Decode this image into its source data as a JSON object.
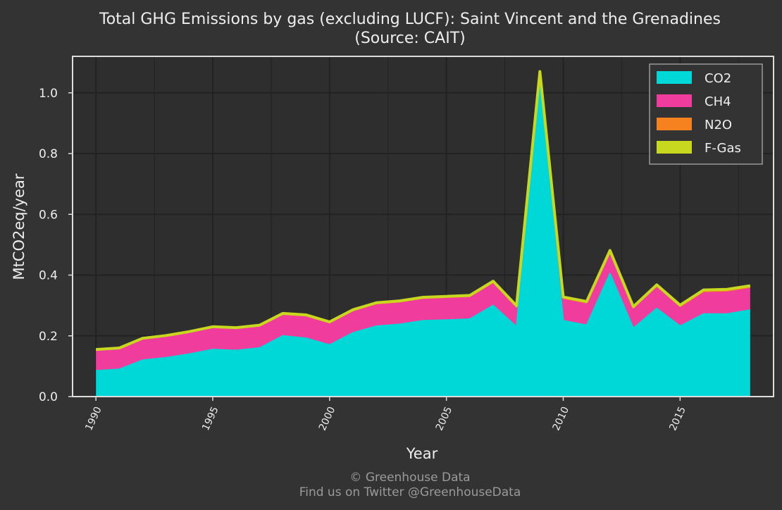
{
  "chart_data": {
    "type": "area",
    "stacked": true,
    "title_line1": "Total GHG Emissions by gas (excluding LUCF): Saint Vincent and the Grenadines",
    "title_line2": "(Source: CAIT)",
    "xlabel": "Year",
    "ylabel": "MtCO2eq/year",
    "xlim": [
      1989,
      2019
    ],
    "ylim": [
      0,
      1.12
    ],
    "x_ticks": [
      1990,
      1995,
      2000,
      2005,
      2010,
      2015
    ],
    "y_ticks": [
      0.0,
      0.2,
      0.4,
      0.6,
      0.8,
      1.0
    ],
    "y_tick_labels": [
      "0.0",
      "0.2",
      "0.4",
      "0.6",
      "0.8",
      "1.0"
    ],
    "grid": true,
    "legend_position": "top-right",
    "x": [
      1990,
      1991,
      1992,
      1993,
      1994,
      1995,
      1996,
      1997,
      1998,
      1999,
      2000,
      2001,
      2002,
      2003,
      2004,
      2005,
      2006,
      2007,
      2008,
      2009,
      2010,
      2011,
      2012,
      2013,
      2014,
      2015,
      2016,
      2017,
      2018
    ],
    "series": [
      {
        "name": "CO2",
        "color": "#00d8d8",
        "values": [
          0.085,
          0.09,
          0.12,
          0.128,
          0.14,
          0.155,
          0.152,
          0.16,
          0.2,
          0.192,
          0.17,
          0.21,
          0.232,
          0.238,
          0.25,
          0.252,
          0.255,
          0.3,
          0.23,
          1.02,
          0.25,
          0.235,
          0.405,
          0.225,
          0.29,
          0.232,
          0.272,
          0.272,
          0.285
        ]
      },
      {
        "name": "CH4",
        "color": "#f03c9c",
        "values": [
          0.066,
          0.066,
          0.068,
          0.069,
          0.07,
          0.071,
          0.071,
          0.071,
          0.069,
          0.072,
          0.071,
          0.071,
          0.072,
          0.072,
          0.072,
          0.073,
          0.073,
          0.074,
          0.063,
          0.044,
          0.072,
          0.072,
          0.07,
          0.065,
          0.072,
          0.063,
          0.072,
          0.074,
          0.073
        ]
      },
      {
        "name": "N2O",
        "color": "#f5821e",
        "values": [
          0.002,
          0.002,
          0.002,
          0.002,
          0.002,
          0.002,
          0.002,
          0.002,
          0.002,
          0.002,
          0.002,
          0.002,
          0.002,
          0.002,
          0.002,
          0.002,
          0.002,
          0.002,
          0.002,
          0.002,
          0.002,
          0.002,
          0.002,
          0.002,
          0.002,
          0.002,
          0.002,
          0.002,
          0.002
        ]
      },
      {
        "name": "F-Gas",
        "color": "#c8d81e",
        "values": [
          0.002,
          0.002,
          0.002,
          0.002,
          0.002,
          0.002,
          0.002,
          0.002,
          0.003,
          0.003,
          0.003,
          0.003,
          0.003,
          0.003,
          0.003,
          0.003,
          0.003,
          0.004,
          0.004,
          0.004,
          0.004,
          0.004,
          0.004,
          0.004,
          0.004,
          0.004,
          0.005,
          0.005,
          0.005
        ]
      }
    ]
  },
  "footer": {
    "line1": "© Greenhouse Data",
    "line2": "Find us on Twitter @GreenhouseData"
  },
  "theme": {
    "background": "#333333",
    "plot_background": "#2e2e2e",
    "grid_color": "#222222",
    "frame_color": "#dddddd"
  }
}
